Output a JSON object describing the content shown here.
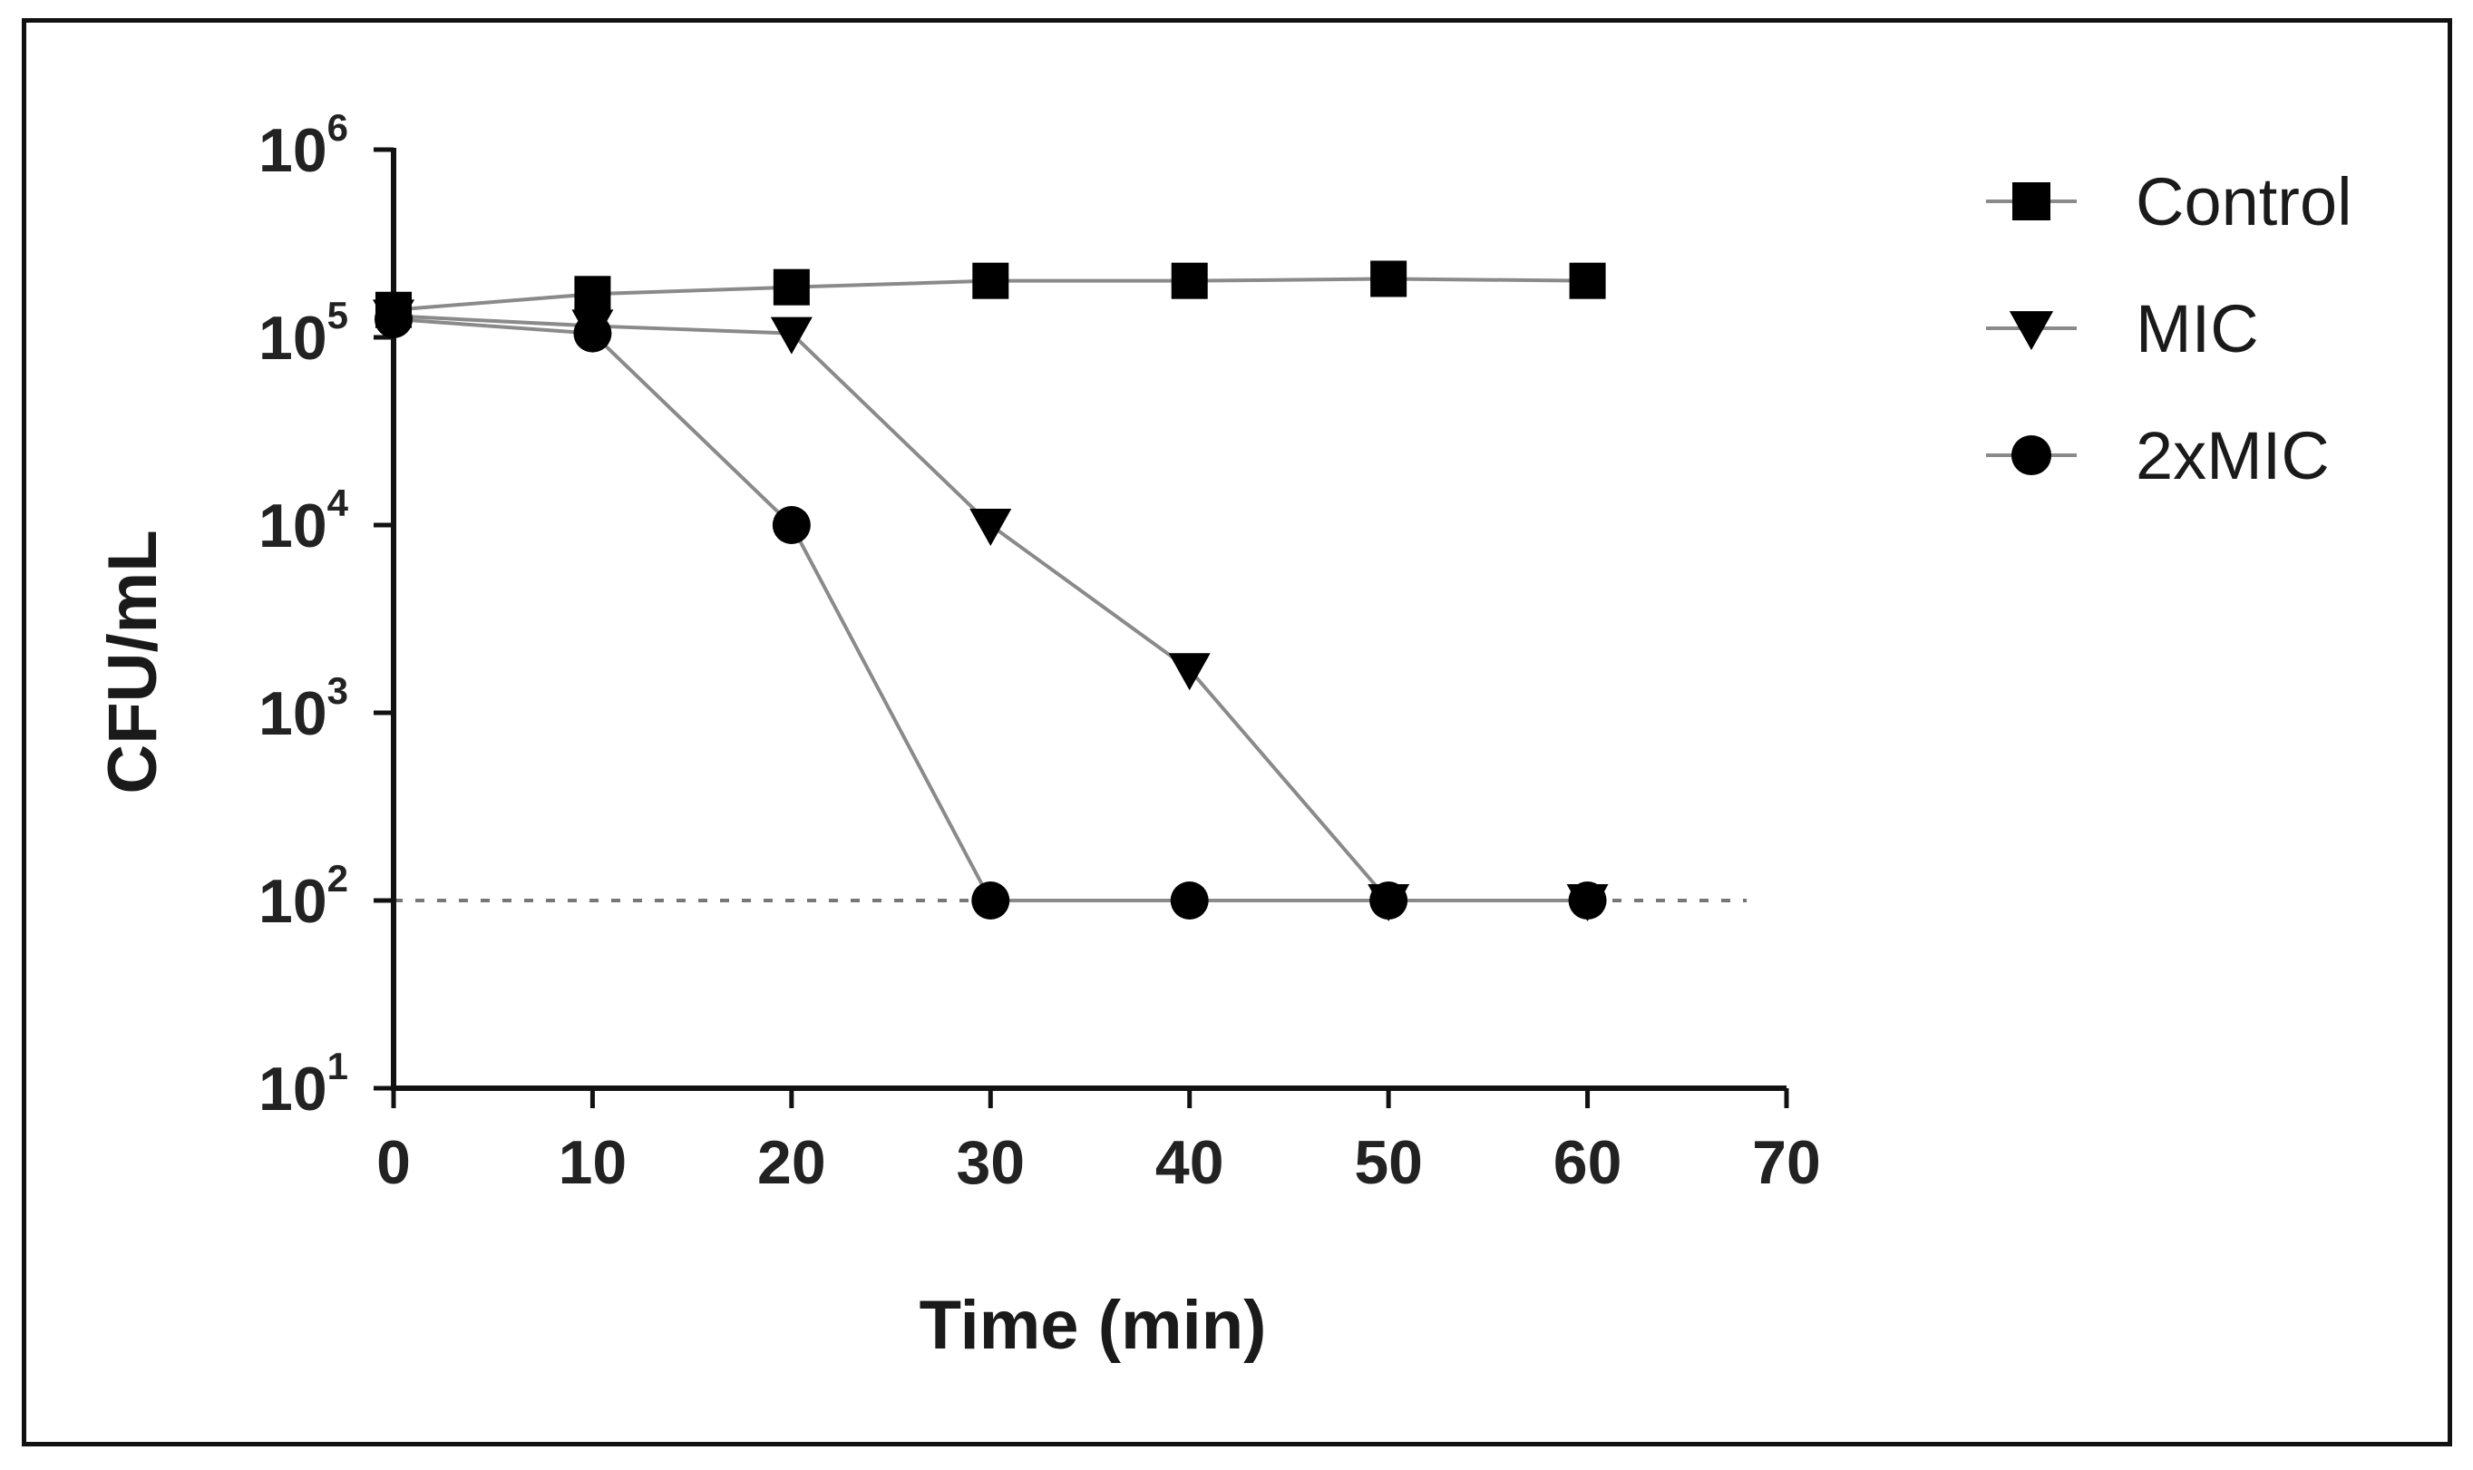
{
  "chart_data": {
    "type": "line",
    "xlabel": "Time (min)",
    "ylabel": "CFU/mL",
    "xlim": [
      0,
      70
    ],
    "ylim": [
      10,
      1000000
    ],
    "yscale": "log",
    "x_ticks": [
      "0",
      "10",
      "20",
      "30",
      "40",
      "50",
      "60",
      "70"
    ],
    "y_ticks": [
      {
        "base": "10",
        "exp": "1",
        "value": 10
      },
      {
        "base": "10",
        "exp": "2",
        "value": 100
      },
      {
        "base": "10",
        "exp": "3",
        "value": 1000
      },
      {
        "base": "10",
        "exp": "4",
        "value": 10000
      },
      {
        "base": "10",
        "exp": "5",
        "value": 100000
      },
      {
        "base": "10",
        "exp": "6",
        "value": 1000000
      }
    ],
    "reference_line": {
      "y": 100,
      "x_end": 68,
      "style": "dotted"
    },
    "legend_position": "top-right",
    "line_color": "#8a8a8a",
    "marker_color": "#000000",
    "series": [
      {
        "name": "Control",
        "marker": "square",
        "x": [
          0,
          10,
          20,
          30,
          40,
          50,
          60
        ],
        "y": [
          140000,
          170000,
          185000,
          200000,
          200000,
          205000,
          200000
        ]
      },
      {
        "name": "MIC",
        "marker": "triangle-down",
        "x": [
          0,
          10,
          20,
          30,
          40,
          50,
          60
        ],
        "y": [
          130000,
          115000,
          105000,
          10000,
          1700,
          100,
          100
        ]
      },
      {
        "name": "2xMIC",
        "marker": "circle",
        "x": [
          0,
          10,
          20,
          30,
          40,
          50,
          60
        ],
        "y": [
          125000,
          105000,
          10000,
          100,
          100,
          100,
          100
        ]
      }
    ]
  }
}
